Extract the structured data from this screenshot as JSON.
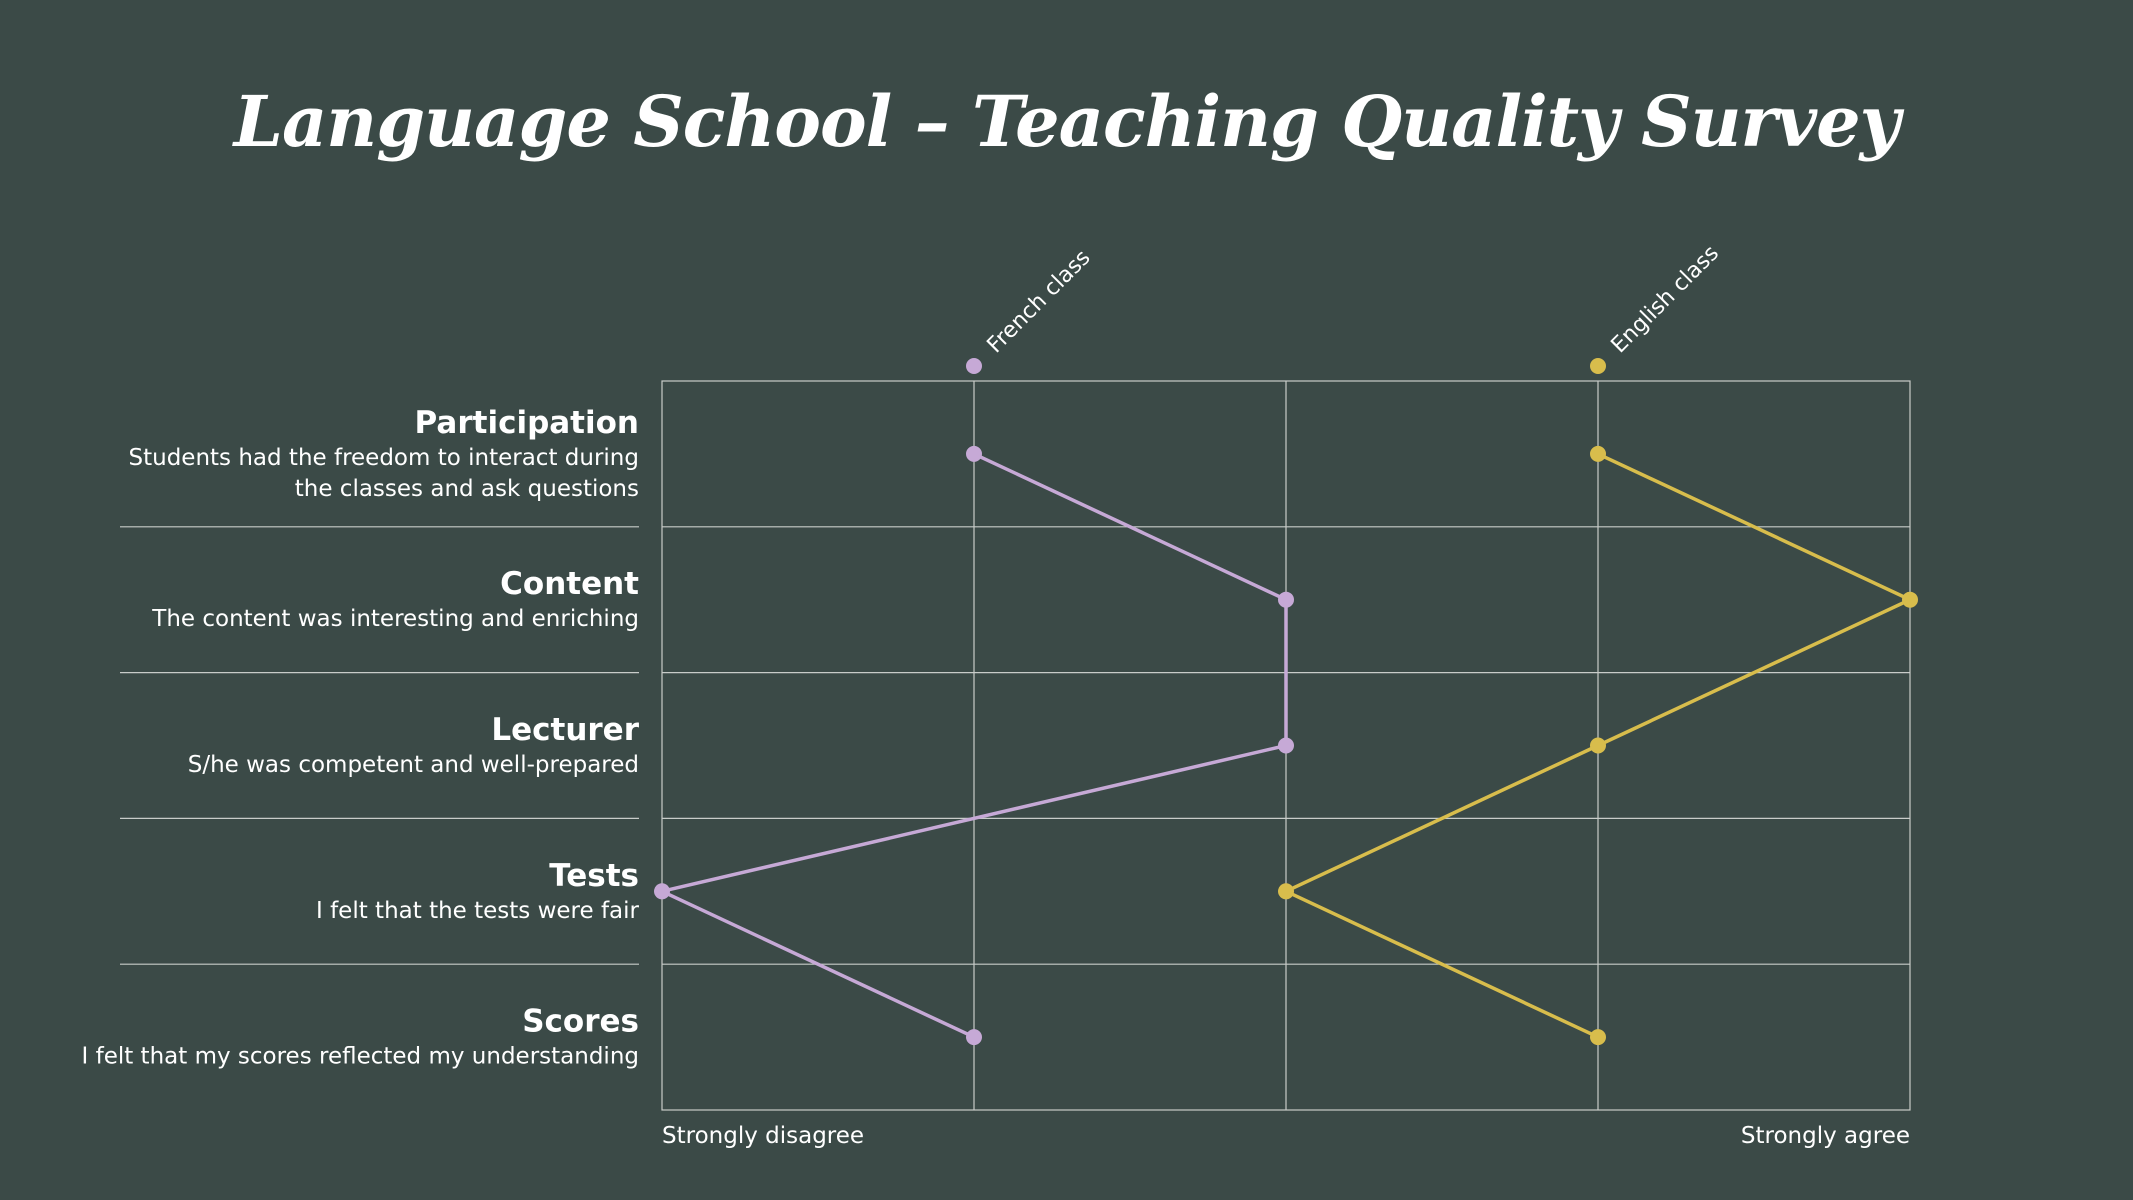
{
  "title": "Language School – Teaching Quality Survey",
  "colors": {
    "background": "#3b4a47",
    "grid": "#c8ccc9",
    "french": "#c6a9d6",
    "english": "#d8bd4c",
    "text": "#ffffff"
  },
  "chart_data": {
    "type": "line",
    "scale": {
      "min": 1,
      "max": 5,
      "min_label": "Strongly disagree",
      "max_label": "Strongly agree"
    },
    "categories": [
      {
        "title": "Participation",
        "description": [
          "Students had the freedom to interact during",
          "the classes and ask questions"
        ]
      },
      {
        "title": "Content",
        "description": [
          "The content was interesting and enriching"
        ]
      },
      {
        "title": "Lecturer",
        "description": [
          "S/he was competent and well-prepared"
        ]
      },
      {
        "title": "Tests",
        "description": [
          "I felt that the tests were fair"
        ]
      },
      {
        "title": "Scores",
        "description": [
          "I felt that my scores reflected my understanding"
        ]
      }
    ],
    "series": [
      {
        "name": "French class",
        "color": "#c6a9d6",
        "legend_value": 2,
        "values": [
          2,
          3,
          3,
          1,
          2
        ]
      },
      {
        "name": "English class",
        "color": "#d8bd4c",
        "legend_value": 4,
        "values": [
          4,
          5,
          4,
          3,
          4
        ]
      }
    ],
    "grid": true
  }
}
